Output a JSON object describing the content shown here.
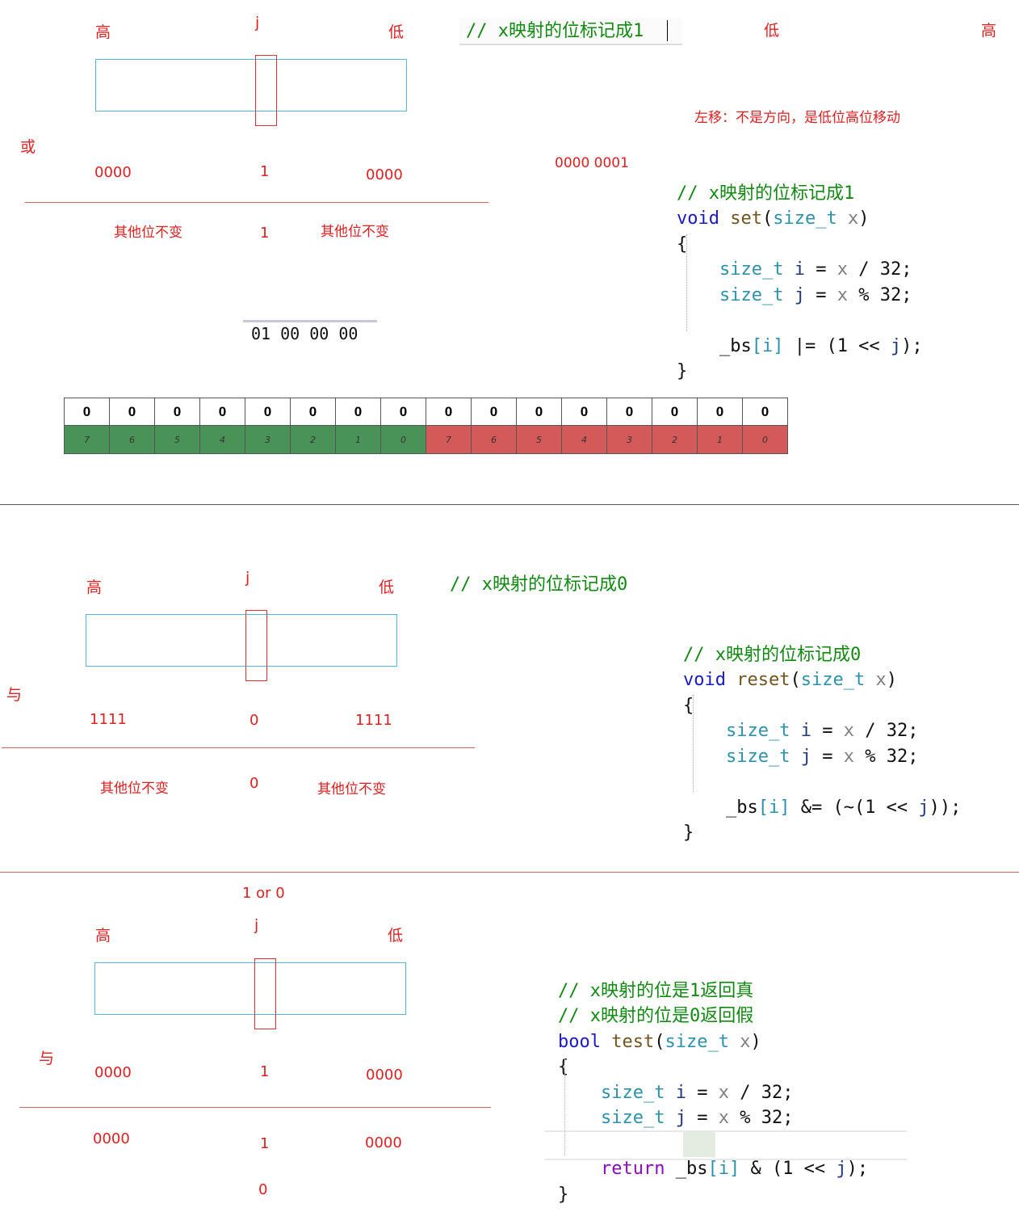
{
  "top": {
    "high": "高",
    "j": "j",
    "low": "低",
    "heading_comment": "// x映射的位标记成1",
    "right_low": "低",
    "right_high": "高",
    "note": "左移：不是方向，是低位高位移动",
    "op": "或",
    "left_bits": "0000",
    "mid_bit": "1",
    "right_bits": "0000",
    "byte_val": "0000 0001",
    "res_left": "其他位不变",
    "res_mid": "1",
    "res_right": "其他位不变",
    "hex": "01 00 00 00",
    "code": {
      "comment": "// x映射的位标记成1",
      "kw": "void",
      "fn": "set",
      "type": "size_t",
      "param": "x",
      "l1": [
        "size_t",
        "i",
        "=",
        "x",
        "/",
        "32;"
      ],
      "l2": [
        "size_t",
        "j",
        "=",
        "x",
        "%",
        "32;"
      ],
      "l3": "_bs[i] |= (1 << j);"
    }
  },
  "bits": {
    "values": [
      "0",
      "0",
      "0",
      "0",
      "0",
      "0",
      "0",
      "0",
      "0",
      "0",
      "0",
      "0",
      "0",
      "0",
      "0",
      "0"
    ],
    "indices": [
      "7",
      "6",
      "5",
      "4",
      "3",
      "2",
      "1",
      "0",
      "7",
      "6",
      "5",
      "4",
      "3",
      "2",
      "1",
      "0"
    ],
    "colors": {
      "first": "#4a9358",
      "second": "#d35a58"
    }
  },
  "mid": {
    "high": "高",
    "j": "j",
    "low": "低",
    "heading_comment": "// x映射的位标记成0",
    "op": "与",
    "left_bits": "1111",
    "mid_bit": "0",
    "right_bits": "1111",
    "res_left": "其他位不变",
    "res_mid": "0",
    "res_right": "其他位不变",
    "code": {
      "comment": "// x映射的位标记成0",
      "kw": "void",
      "fn": "reset",
      "type": "size_t",
      "param": "x",
      "l3": "_bs[i] &= (~(1 << j));"
    }
  },
  "bottom": {
    "one_or_zero": "1 or 0",
    "high": "高",
    "j": "j",
    "low": "低",
    "op": "与",
    "left_bits": "0000",
    "mid_bit": "1",
    "right_bits": "0000",
    "res_left": "0000",
    "res_mid": "1",
    "res_right": "0000",
    "final": "0",
    "code": {
      "comment1": "// x映射的位是1返回真",
      "comment2": "// x映射的位是0返回假",
      "kw": "bool",
      "fn": "test",
      "type": "size_t",
      "param": "x",
      "ret": "return",
      "l3": "_bs[i] & (1 << j);"
    }
  },
  "colors": {
    "label_red": "#e02020",
    "box_blue": "#4db8e8",
    "comment_green": "#108a10"
  }
}
